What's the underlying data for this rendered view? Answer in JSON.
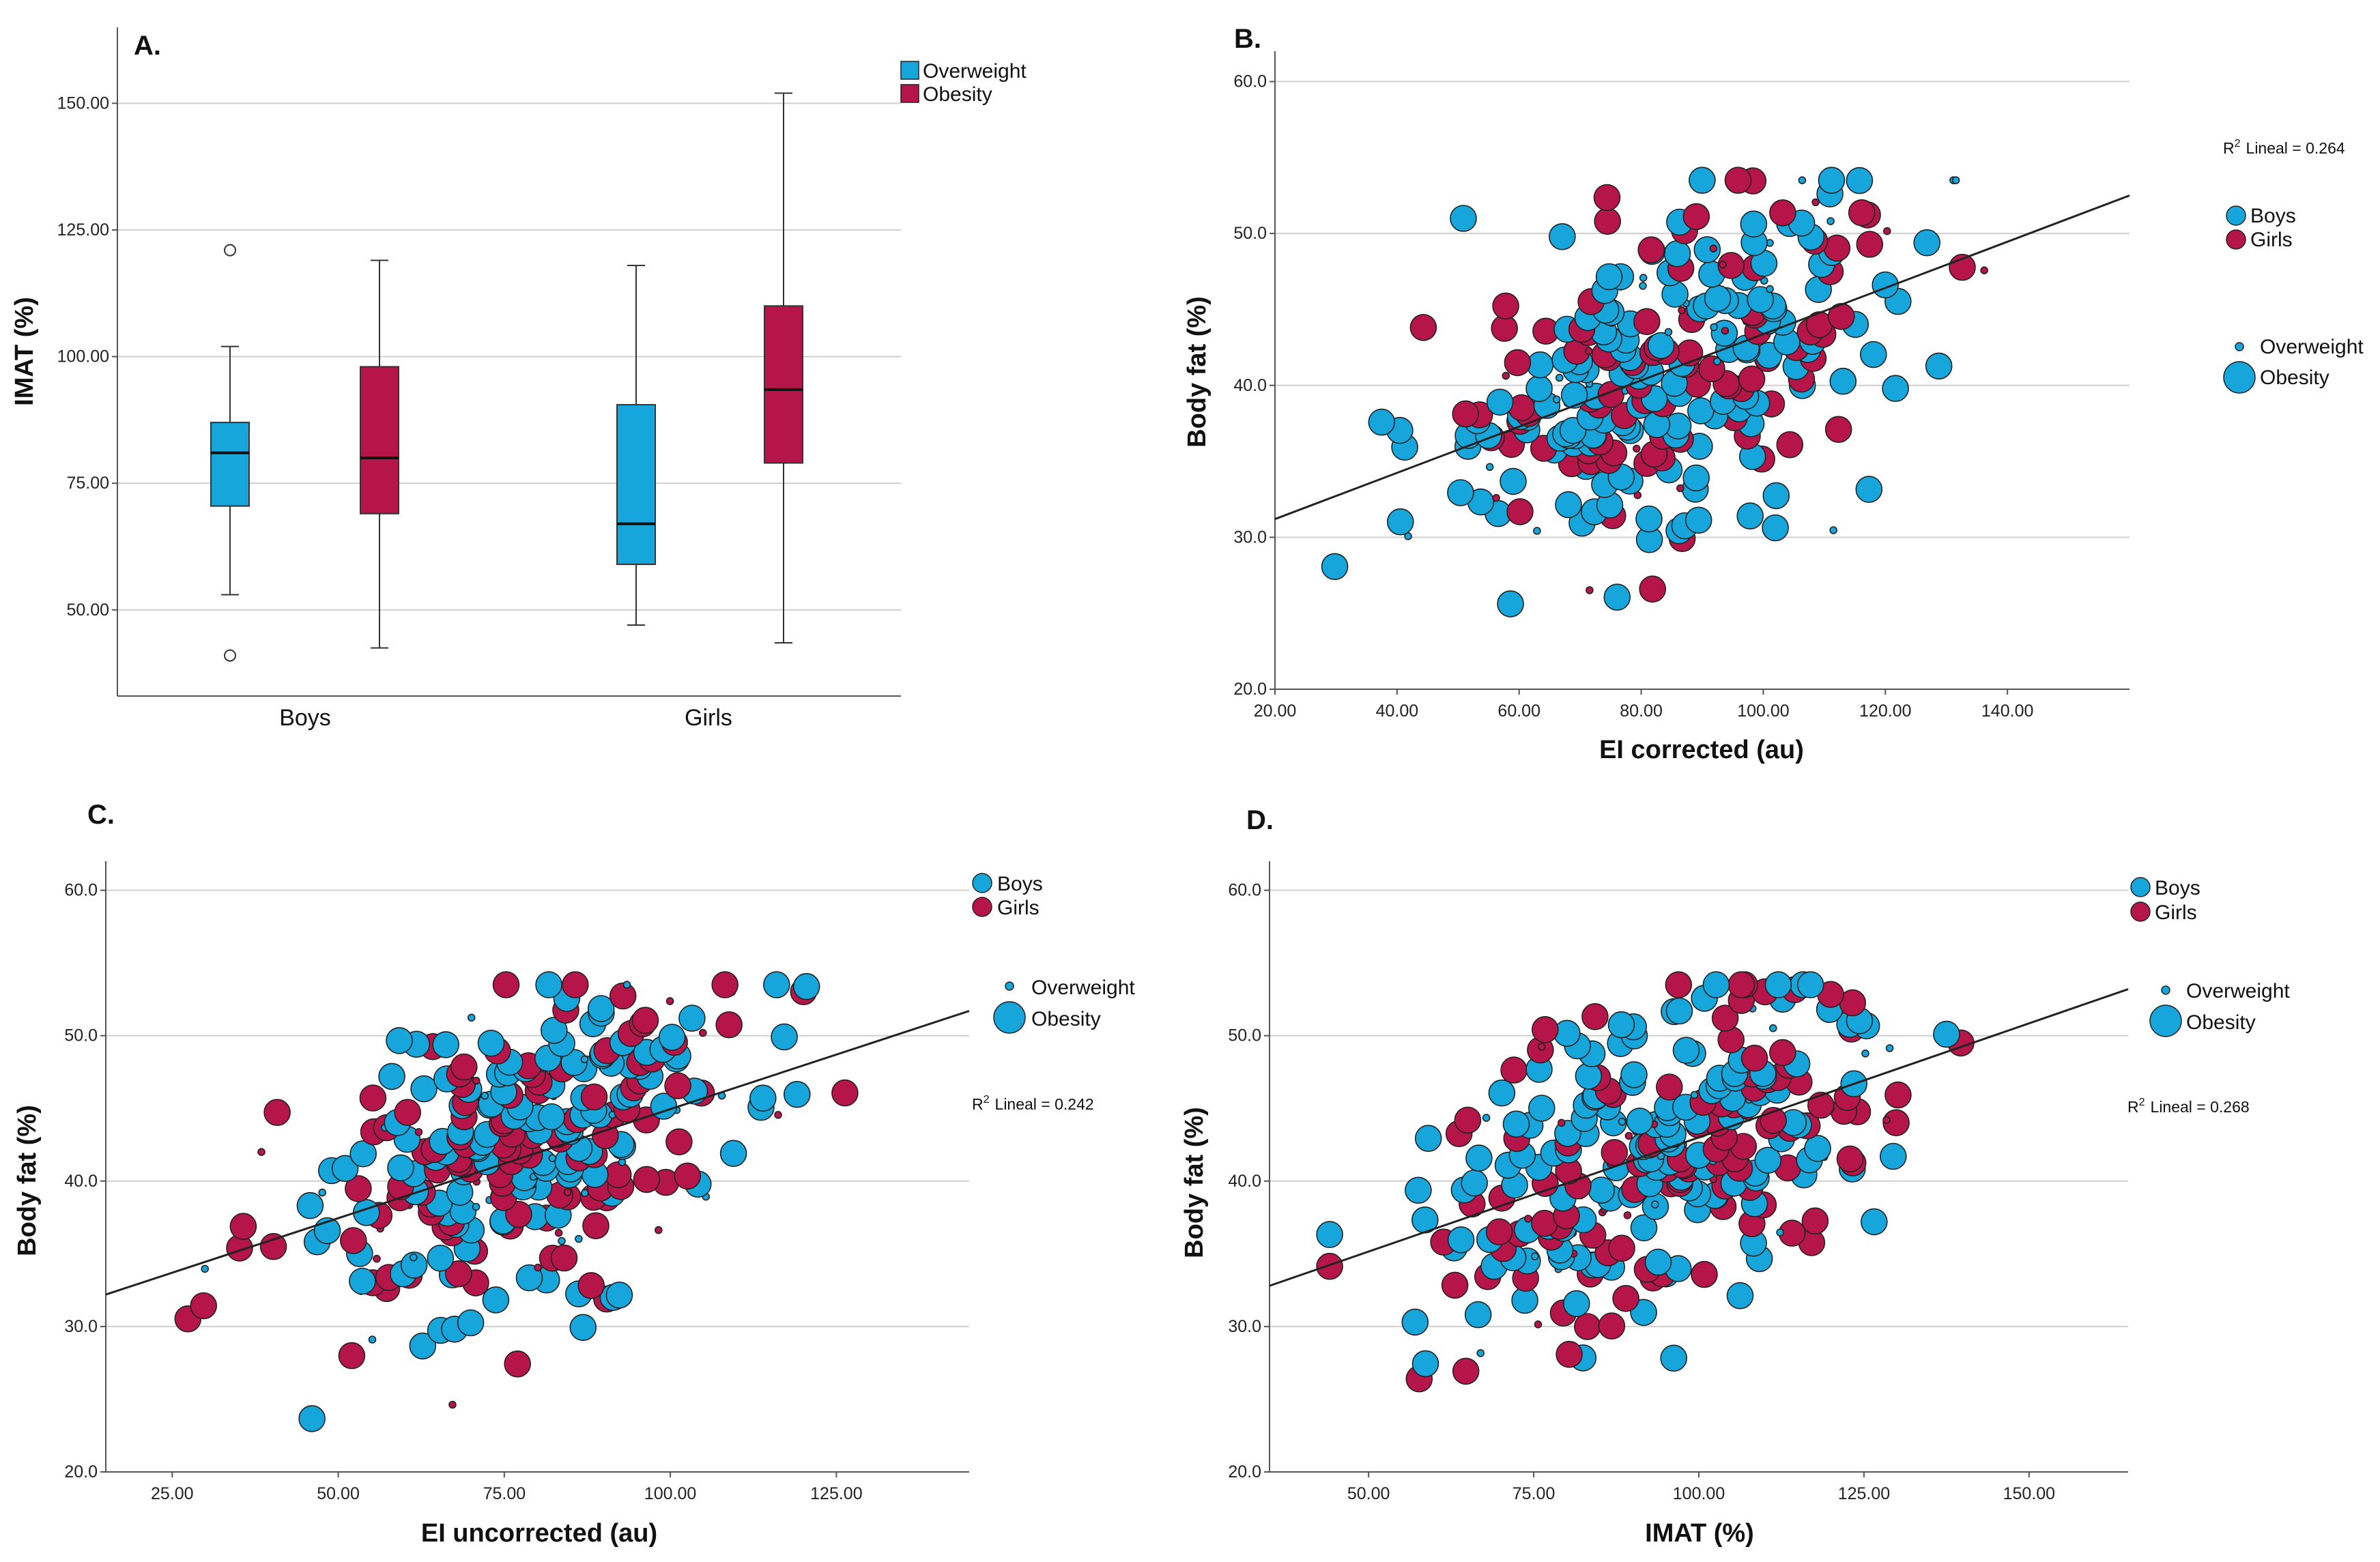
{
  "colors": {
    "overweight": "#17a6dc",
    "obesity": "#b6154a",
    "boys": "#17a6dc",
    "girls": "#b6154a",
    "grid": "#cfcfcf",
    "axis": "#555555",
    "line": "#222222"
  },
  "chart_data": [
    {
      "id": "A",
      "type": "box",
      "panel_label": "A.",
      "ylabel": "IMAT (%)",
      "xlabel": "",
      "categories": [
        "Boys",
        "Girls"
      ],
      "ylim": [
        33,
        165
      ],
      "yticks": [
        50,
        75,
        100,
        125,
        150
      ],
      "ytick_labels": [
        "50.00",
        "75.00",
        "100.00",
        "125.00",
        "150.00"
      ],
      "legend": [
        {
          "name": "Overweight",
          "color": "#17a6dc"
        },
        {
          "name": "Obesity",
          "color": "#b6154a"
        }
      ],
      "series": [
        {
          "name": "Overweight",
          "boxes": [
            {
              "category": "Boys",
              "whisker_low": 53,
              "q1": 70.5,
              "median": 81,
              "q3": 87,
              "whisker_high": 102,
              "outliers": [
                121,
                41
              ]
            },
            {
              "category": "Girls",
              "whisker_low": 47,
              "q1": 59,
              "median": 67,
              "q3": 90.5,
              "whisker_high": 118,
              "outliers": []
            }
          ]
        },
        {
          "name": "Obesity",
          "boxes": [
            {
              "category": "Boys",
              "whisker_low": 42.5,
              "q1": 69,
              "median": 80,
              "q3": 98,
              "whisker_high": 119,
              "outliers": []
            },
            {
              "category": "Girls",
              "whisker_low": 43.5,
              "q1": 79,
              "median": 93.5,
              "q3": 110,
              "whisker_high": 152,
              "outliers": []
            }
          ]
        }
      ]
    },
    {
      "id": "B",
      "type": "scatter",
      "panel_label": "B.",
      "xlabel": "EI corrected (au)",
      "ylabel": "Body fat (%)",
      "xlim": [
        20,
        160
      ],
      "ylim": [
        20,
        62
      ],
      "xticks": [
        20,
        40,
        60,
        80,
        100,
        120,
        140
      ],
      "xtick_labels": [
        "20.00",
        "40.00",
        "60.00",
        "80.00",
        "100.00",
        "120.00",
        "140.00"
      ],
      "yticks": [
        20,
        30,
        40,
        50,
        60
      ],
      "ytick_labels": [
        "20.0",
        "30.0",
        "40.0",
        "50.0",
        "60.0"
      ],
      "fit_line": {
        "x0": 20,
        "y0": 31.2,
        "x1": 160,
        "y1": 52.5
      },
      "r2_label": "Lineal = 0.264",
      "r2_prefix": "R",
      "r2_exp": "2",
      "legend_groups": [
        "Boys",
        "Girls"
      ],
      "legend_sizes": [
        "Overweight",
        "Obesity"
      ],
      "seed": 11,
      "n_points": 300
    },
    {
      "id": "C",
      "type": "scatter",
      "panel_label": "C.",
      "xlabel": "EI uncorrected (au)",
      "ylabel": "Body fat (%)",
      "xlim": [
        15,
        145
      ],
      "ylim": [
        20,
        62
      ],
      "xticks": [
        25,
        50,
        75,
        100,
        125
      ],
      "xtick_labels": [
        "25.00",
        "50.00",
        "75.00",
        "100.00",
        "125.00"
      ],
      "yticks": [
        20,
        30,
        40,
        50,
        60
      ],
      "ytick_labels": [
        "20.0",
        "30.0",
        "40.0",
        "50.0",
        "60.0"
      ],
      "fit_line": {
        "x0": 15,
        "y0": 32.2,
        "x1": 145,
        "y1": 51.7
      },
      "r2_label": "Lineal = 0.242",
      "r2_prefix": "R",
      "r2_exp": "2",
      "legend_groups": [
        "Boys",
        "Girls"
      ],
      "legend_sizes": [
        "Overweight",
        "Obesity"
      ],
      "seed": 23,
      "n_points": 300
    },
    {
      "id": "D",
      "type": "scatter",
      "panel_label": "D.",
      "xlabel": "IMAT (%)",
      "ylabel": "Body fat (%)",
      "xlim": [
        35,
        165
      ],
      "ylim": [
        20,
        62
      ],
      "xticks": [
        50,
        75,
        100,
        125,
        150
      ],
      "xtick_labels": [
        "50.00",
        "75.00",
        "100.00",
        "125.00",
        "150.00"
      ],
      "yticks": [
        20,
        30,
        40,
        50,
        60
      ],
      "ytick_labels": [
        "20.0",
        "30.0",
        "40.0",
        "50.0",
        "60.0"
      ],
      "fit_line": {
        "x0": 35,
        "y0": 32.8,
        "x1": 165,
        "y1": 53.2
      },
      "r2_label": "Lineal = 0.268",
      "r2_prefix": "R",
      "r2_exp": "2",
      "legend_groups": [
        "Boys",
        "Girls"
      ],
      "legend_sizes": [
        "Overweight",
        "Obesity"
      ],
      "seed": 37,
      "n_points": 300
    }
  ]
}
